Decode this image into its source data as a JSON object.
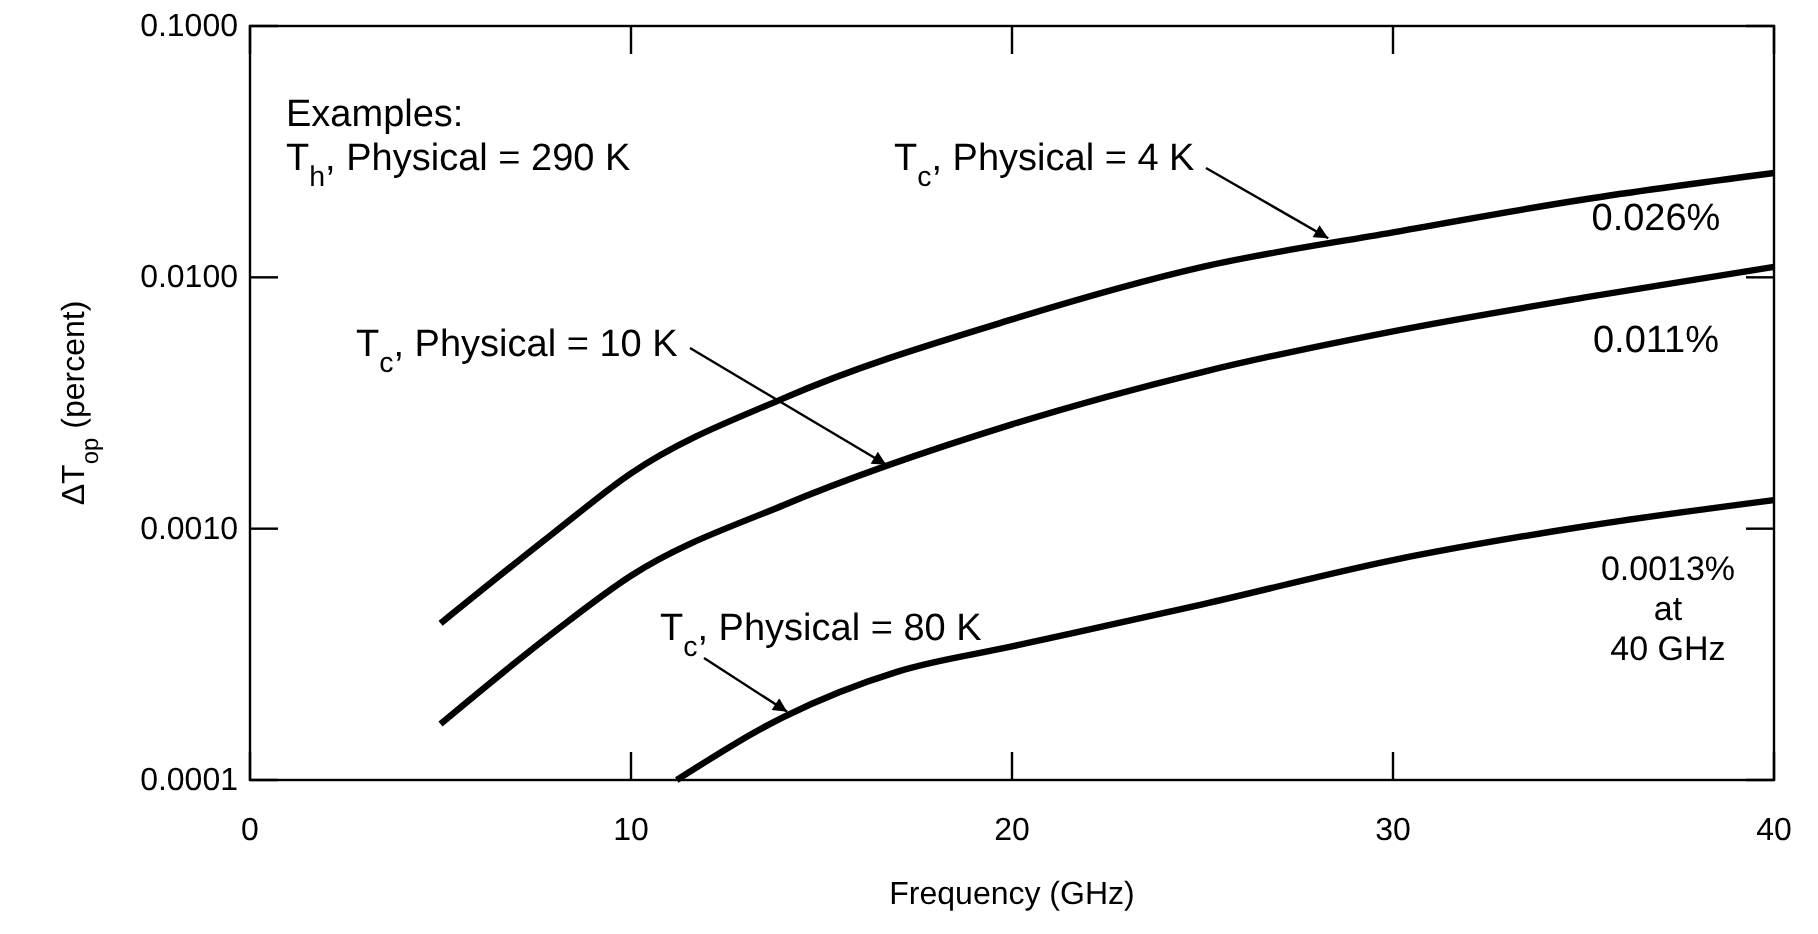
{
  "chart_data": {
    "type": "line",
    "xlabel": "Frequency (GHz)",
    "ylabel": "ΔT$_{op}$ (percent)",
    "log": true,
    "xlim": [
      0,
      40
    ],
    "xticks": [
      0,
      10,
      20,
      30,
      40
    ],
    "ylim": [
      0.0001,
      0.1
    ],
    "yticks": [
      {
        "value": 0.0001,
        "label": "0.0001"
      },
      {
        "value": 0.001,
        "label": "0.0010"
      },
      {
        "value": 0.01,
        "label": "0.0100"
      },
      {
        "value": 0.1,
        "label": "0.1000"
      }
    ],
    "grid": false,
    "marker": "none",
    "line_style": "solid",
    "series": [
      {
        "color": "#000000",
        "x": [
          5,
          8,
          10,
          14,
          20,
          25,
          30,
          35,
          40
        ],
        "values": [
          0.00042,
          0.00097,
          0.00166,
          0.0033,
          0.0068,
          0.011,
          0.0151,
          0.0204,
          0.026
        ]
      },
      {
        "color": "#000000",
        "x": [
          5,
          8,
          10,
          14,
          20,
          25,
          30,
          35,
          40
        ],
        "values": [
          0.000167,
          0.00039,
          0.00065,
          0.00124,
          0.0026,
          0.0042,
          0.0061,
          0.0083,
          0.011
        ]
      },
      {
        "color": "#000000",
        "x": [
          11.2,
          14,
          17,
          20,
          25,
          30,
          35,
          40
        ],
        "values": [
          0.0001,
          0.000178,
          0.00027,
          0.00034,
          0.0005,
          0.00075,
          0.00102,
          0.0013
        ]
      }
    ],
    "annotations": [
      "Examples:",
      "T$_{h}$, Physical = 290 K",
      {
        "text": "T$_{c}$, Physical = 4 K",
        "x": 28.3,
        "y": 0.0138
      },
      {
        "text": "T$_{c}$, Physical = 10 K",
        "x": 16.7,
        "y": 0.00173
      },
      {
        "text": "T$_{c}$, Physical = 80 K",
        "x": 14.1,
        "y": 0.00018
      },
      "0.026%",
      "0.011%",
      "0.0013%\nat\n40 GHz"
    ]
  }
}
